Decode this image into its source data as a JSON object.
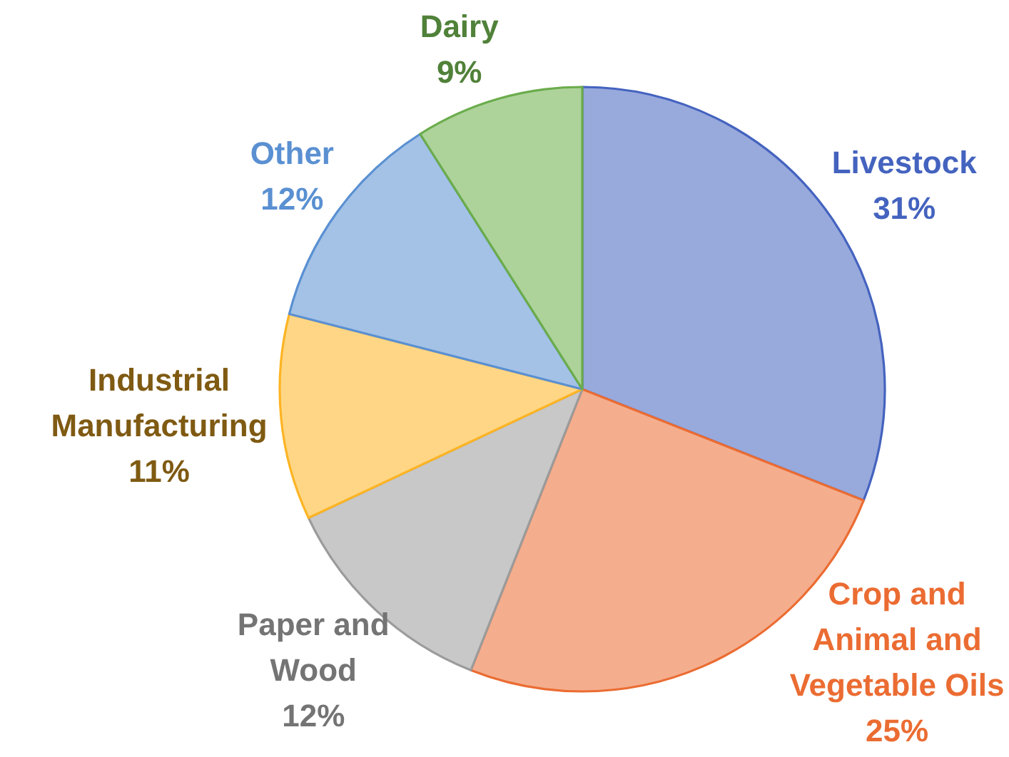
{
  "chart_data": {
    "type": "pie",
    "categories": [
      "Livestock",
      "Crop and Animal and Vegetable Oils",
      "Paper and Wood",
      "Industrial Manufacturing",
      "Other",
      "Dairy"
    ],
    "values": [
      31,
      25,
      12,
      11,
      12,
      9
    ],
    "colors": [
      "#98a9dc",
      "#f4ae8e",
      "#c8c8c8",
      "#fed686",
      "#a4c2e6",
      "#add39b"
    ],
    "value_labels": [
      "31%",
      "25%",
      "12%",
      "11%",
      "12%",
      "9%"
    ]
  }
}
